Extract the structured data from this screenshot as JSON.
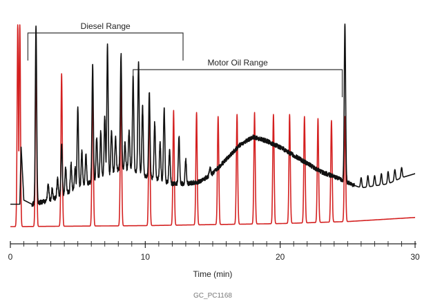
{
  "chart_data": {
    "type": "line",
    "title": "",
    "xlabel": "Time (min)",
    "ylabel": "",
    "xlim": [
      0,
      30
    ],
    "ylim": [
      0,
      100
    ],
    "grid": false,
    "legend": "none",
    "x_ticks": [
      0,
      10,
      20,
      30
    ],
    "x_tick_labels": [
      "0",
      "10",
      "20",
      "30"
    ],
    "caption": "GC_PC1168",
    "ranges": [
      {
        "label": "Diesel Range",
        "start": 1.3,
        "end": 12.8,
        "level": 96
      },
      {
        "label": "Motor Oil Range",
        "start": 9.1,
        "end": 24.6,
        "level": 78
      }
    ],
    "series": [
      {
        "color": "#d42020",
        "baseline": [
          [
            0,
            1
          ],
          [
            10,
            1.5
          ],
          [
            20,
            2.5
          ],
          [
            25,
            3.5
          ],
          [
            30,
            5.5
          ]
        ],
        "peaks": [
          {
            "x": 0.55,
            "y": 100
          },
          {
            "x": 0.7,
            "y": 100
          },
          {
            "x": 1.9,
            "y": 84
          },
          {
            "x": 3.8,
            "y": 76
          },
          {
            "x": 6.1,
            "y": 73
          },
          {
            "x": 8.2,
            "y": 70
          },
          {
            "x": 10.3,
            "y": 63
          },
          {
            "x": 12.1,
            "y": 58
          },
          {
            "x": 13.8,
            "y": 57
          },
          {
            "x": 15.4,
            "y": 55
          },
          {
            "x": 16.8,
            "y": 56
          },
          {
            "x": 18.1,
            "y": 57
          },
          {
            "x": 19.5,
            "y": 56
          },
          {
            "x": 20.7,
            "y": 56
          },
          {
            "x": 21.8,
            "y": 55
          },
          {
            "x": 22.8,
            "y": 54
          },
          {
            "x": 23.8,
            "y": 53
          },
          {
            "x": 24.8,
            "y": 55
          }
        ]
      },
      {
        "color": "#111111",
        "baseline": [
          [
            0,
            12
          ],
          [
            0.7,
            12
          ],
          [
            0.8,
            40
          ],
          [
            1.0,
            14
          ],
          [
            1.6,
            12
          ],
          [
            3,
            14
          ],
          [
            5,
            20
          ],
          [
            6,
            23
          ],
          [
            7,
            26
          ],
          [
            8,
            29
          ],
          [
            9,
            29
          ],
          [
            10,
            26
          ],
          [
            11,
            24
          ],
          [
            12,
            22
          ],
          [
            13,
            22
          ],
          [
            14,
            23
          ],
          [
            15,
            27
          ],
          [
            16,
            34
          ],
          [
            17,
            41
          ],
          [
            18,
            45
          ],
          [
            19,
            43
          ],
          [
            20,
            40
          ],
          [
            21,
            36
          ],
          [
            22,
            32
          ],
          [
            23,
            28
          ],
          [
            24.2,
            25
          ],
          [
            24.8,
            23
          ],
          [
            25.2,
            22
          ],
          [
            26,
            20
          ],
          [
            27,
            21
          ],
          [
            28,
            22
          ],
          [
            29,
            25
          ],
          [
            30,
            27
          ]
        ],
        "peaks": [
          {
            "x": 1.9,
            "y": 100
          },
          {
            "x": 2.8,
            "y": 22
          },
          {
            "x": 3.1,
            "y": 20
          },
          {
            "x": 3.5,
            "y": 25
          },
          {
            "x": 3.8,
            "y": 42
          },
          {
            "x": 4.1,
            "y": 30
          },
          {
            "x": 4.5,
            "y": 32
          },
          {
            "x": 4.8,
            "y": 30
          },
          {
            "x": 5.0,
            "y": 60
          },
          {
            "x": 5.3,
            "y": 38
          },
          {
            "x": 5.6,
            "y": 36
          },
          {
            "x": 6.1,
            "y": 81
          },
          {
            "x": 6.4,
            "y": 45
          },
          {
            "x": 6.7,
            "y": 48
          },
          {
            "x": 7.0,
            "y": 55
          },
          {
            "x": 7.2,
            "y": 90
          },
          {
            "x": 7.5,
            "y": 48
          },
          {
            "x": 7.8,
            "y": 45
          },
          {
            "x": 8.2,
            "y": 86
          },
          {
            "x": 8.5,
            "y": 42
          },
          {
            "x": 8.8,
            "y": 48
          },
          {
            "x": 9.1,
            "y": 75
          },
          {
            "x": 9.5,
            "y": 82
          },
          {
            "x": 9.8,
            "y": 60
          },
          {
            "x": 10.3,
            "y": 67
          },
          {
            "x": 10.7,
            "y": 52
          },
          {
            "x": 11.1,
            "y": 42
          },
          {
            "x": 11.4,
            "y": 59
          },
          {
            "x": 11.8,
            "y": 38
          },
          {
            "x": 12.5,
            "y": 45
          },
          {
            "x": 13.0,
            "y": 34
          },
          {
            "x": 14.8,
            "y": 30
          },
          {
            "x": 24.8,
            "y": 100
          },
          {
            "x": 26.0,
            "y": 25
          },
          {
            "x": 26.5,
            "y": 26
          },
          {
            "x": 27.0,
            "y": 26
          },
          {
            "x": 27.5,
            "y": 27
          },
          {
            "x": 28.0,
            "y": 28
          },
          {
            "x": 28.5,
            "y": 29
          },
          {
            "x": 29.0,
            "y": 30
          }
        ],
        "noise": 2.2
      }
    ]
  }
}
